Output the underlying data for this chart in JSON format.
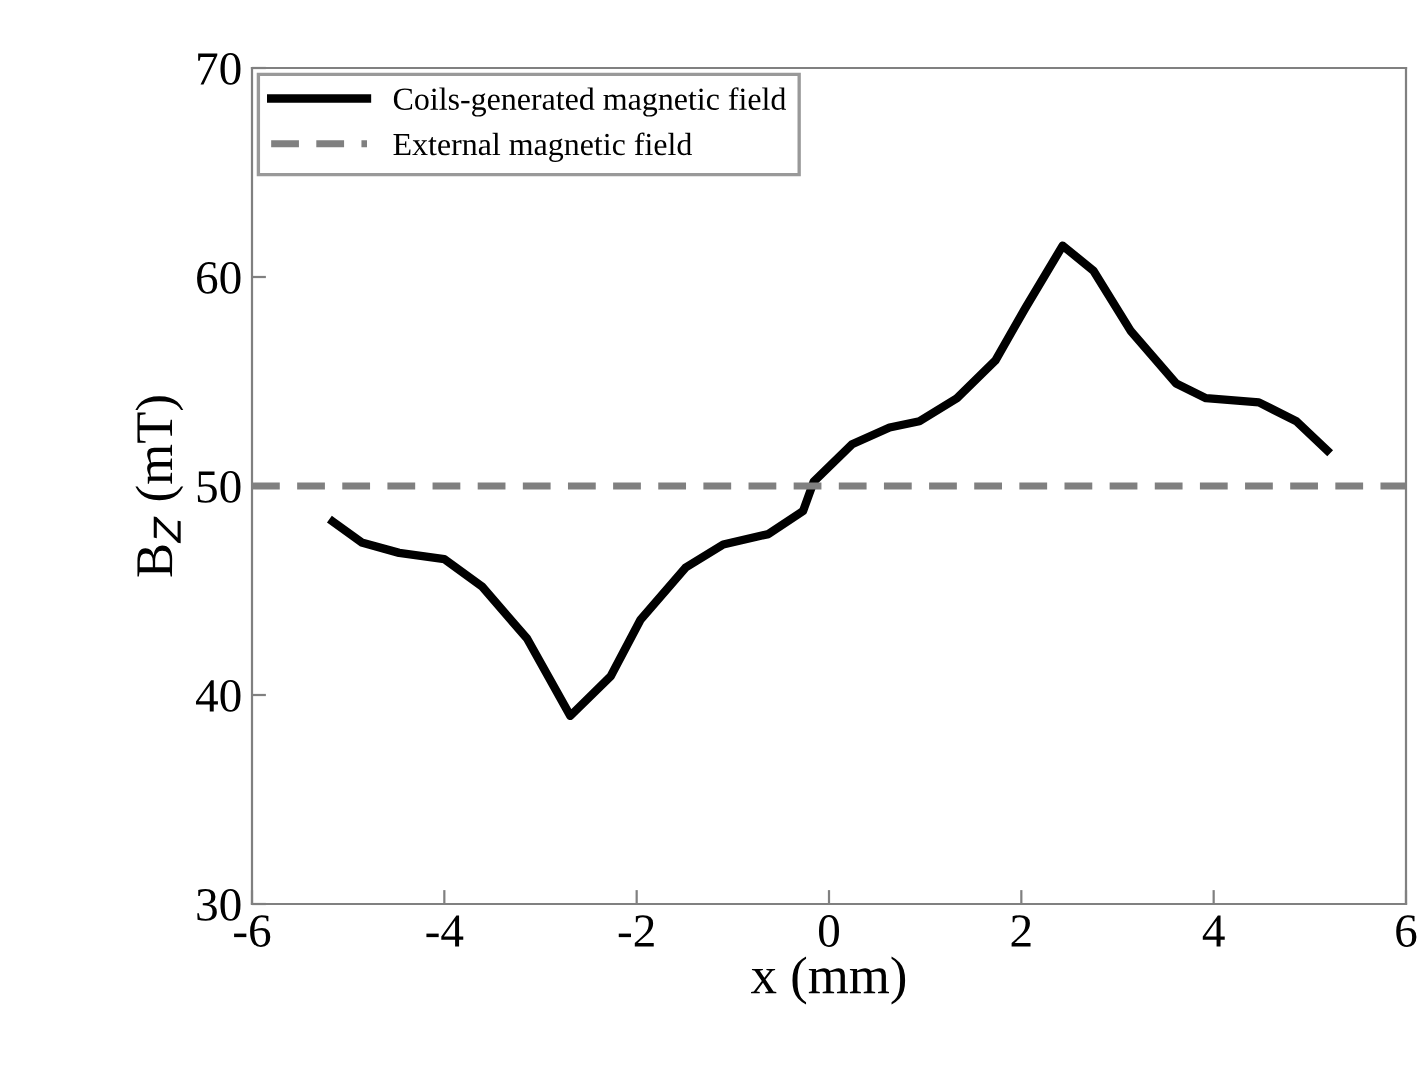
{
  "chart_data": {
    "type": "line",
    "xlabel": "x (mm)",
    "ylabel": "B$_{Z}$ (mT)",
    "xlim": [
      -6,
      6
    ],
    "xticks": [
      -6,
      -4,
      -2,
      0,
      2,
      4,
      6
    ],
    "ylim": [
      30,
      70
    ],
    "yticks": [
      30,
      40,
      50,
      60,
      70
    ],
    "legend": "top left",
    "grid": false,
    "series": [
      {
        "name": "Coils-generated magnetic field",
        "color": "#000000",
        "line_style": "solid",
        "x": [
          -5.16,
          -4.86,
          -4.47,
          -4.0,
          -3.61,
          -3.14,
          -2.69,
          -2.27,
          -1.96,
          -1.49,
          -1.1,
          -0.63,
          -0.27,
          -0.16,
          0.24,
          0.63,
          0.94,
          1.33,
          1.73,
          2.04,
          2.43,
          2.75,
          3.14,
          3.61,
          3.92,
          4.47,
          4.86,
          5.18
        ],
        "values": [
          48.3,
          47.3,
          46.8,
          46.5,
          45.2,
          42.7,
          39.0,
          40.9,
          43.6,
          46.1,
          47.2,
          47.7,
          48.8,
          50.2,
          52.0,
          52.8,
          53.1,
          54.2,
          56.0,
          58.5,
          61.5,
          60.3,
          57.4,
          54.9,
          54.2,
          54.0,
          53.1,
          51.7
        ]
      },
      {
        "name": "External magnetic field",
        "color": "#808080",
        "line_style": "dashed",
        "x": [
          -6,
          6
        ],
        "values": [
          50,
          50
        ]
      }
    ]
  }
}
